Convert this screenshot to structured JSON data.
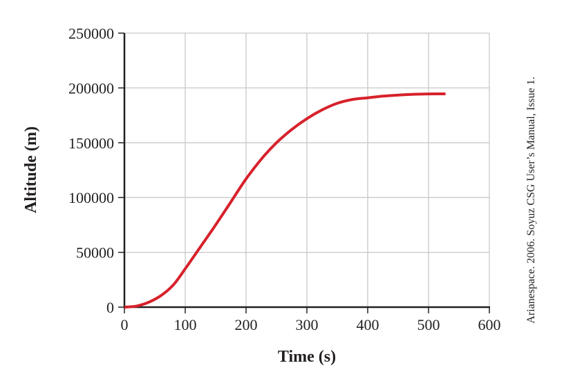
{
  "chart_data": {
    "type": "line",
    "title": "",
    "xlabel": "Time (s)",
    "ylabel": "Altitude (m)",
    "xlim": [
      0,
      600
    ],
    "ylim": [
      0,
      250000
    ],
    "x_ticks": [
      0,
      100,
      200,
      300,
      400,
      500,
      600
    ],
    "y_ticks": [
      0,
      50000,
      100000,
      150000,
      200000,
      250000
    ],
    "x_tick_labels": [
      "0",
      "100",
      "200",
      "300",
      "400",
      "500",
      "600"
    ],
    "y_tick_labels": [
      "0",
      "50000",
      "100000",
      "150000",
      "200000",
      "250000"
    ],
    "grid": true,
    "legend": null,
    "series": [
      {
        "name": "Altitude",
        "color": "#d7212b",
        "x": [
          0,
          20,
          40,
          60,
          80,
          100,
          125,
          150,
          175,
          200,
          225,
          250,
          275,
          300,
          325,
          350,
          375,
          400,
          425,
          450,
          475,
          500,
          528
        ],
        "values": [
          0,
          1000,
          4500,
          10500,
          20000,
          35000,
          55000,
          75000,
          96000,
          117000,
          135000,
          150000,
          162000,
          172000,
          180000,
          186000,
          189500,
          191000,
          192500,
          193500,
          194200,
          194500,
          194600
        ]
      }
    ],
    "source_note": "Arianespace. 2006. Soyuz CSG User’s Manual, Issue 1."
  },
  "labels": {
    "xlabel": "Time (s)",
    "ylabel": "Altitude (m)",
    "source": "Arianespace. 2006. Soyuz CSG User’s Manual, Issue 1."
  },
  "colors": {
    "line": "#d7212b",
    "axis": "#231f20",
    "grid": "#c8c8c8"
  }
}
